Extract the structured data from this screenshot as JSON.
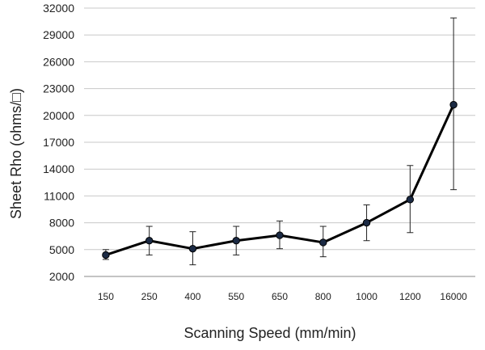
{
  "chart_data": {
    "type": "line",
    "title": "",
    "xlabel": "Scanning Speed (mm/min)",
    "ylabel": "Sheet Rho (ohms/□)",
    "categories": [
      "150",
      "250",
      "400",
      "550",
      "650",
      "800",
      "1000",
      "1200",
      "16000"
    ],
    "yticks": [
      "2000",
      "5000",
      "8000",
      "11000",
      "14000",
      "17000",
      "20000",
      "23000",
      "26000",
      "29000",
      "32000"
    ],
    "ylim": [
      2000,
      32000
    ],
    "grid": true,
    "legend": "none",
    "series": [
      {
        "values": [
          4400,
          6000,
          5100,
          6000,
          6600,
          5800,
          8000,
          10600,
          21200
        ],
        "error_low": [
          3900,
          4400,
          3300,
          4400,
          5100,
          4200,
          6000,
          6900,
          11700
        ],
        "error_high": [
          5000,
          7600,
          7000,
          7600,
          8200,
          7600,
          10000,
          14400,
          30900
        ],
        "color": "#000000",
        "marker_color": "#1b2a44"
      }
    ]
  }
}
